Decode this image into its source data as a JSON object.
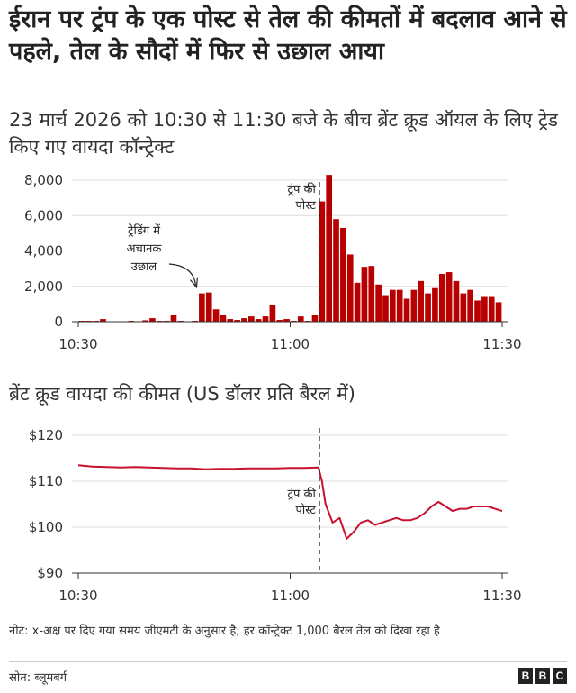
{
  "header": {
    "title": "ईरान पर ट्रंप के एक पोस्ट से तेल की कीमतों में बदलाव आने से पहले, तेल के सौदों में फिर से उछाल आया",
    "subtitle": "23 मार्च 2026 को 10:30 से 11:30 बजे के बीच ब्रेंट क्रूड ऑयल के लिए ट्रेड किए गए वायदा कॉन्ट्रेक्ट"
  },
  "chart2_heading": "ब्रेंट क्रूड वायदा की कीमत (US डॉलर प्रति बैरल में)",
  "colors": {
    "bar": "#b80000",
    "line": "#c8102e",
    "axis": "#999999",
    "grid": "#dddddd"
  },
  "chart_data": [
    {
      "type": "bar",
      "title": "23 मार्च 2026 को 10:30 से 11:30 बजे के बीच ब्रेंट क्रूड ऑयल के लिए ट्रेड किए गए वायदा कॉन्ट्रेक्ट",
      "x_unit": "minute (GMT)",
      "x_range": [
        "10:30",
        "11:30"
      ],
      "x_ticks": [
        "10:30",
        "11:00",
        "11:30"
      ],
      "y_ticks": [
        "0",
        "2,000",
        "4,000",
        "6,000",
        "8,000"
      ],
      "ylim": [
        0,
        8000
      ],
      "grid": true,
      "x": [
        "10:30",
        "10:31",
        "10:32",
        "10:33",
        "10:34",
        "10:35",
        "10:36",
        "10:37",
        "10:38",
        "10:39",
        "10:40",
        "10:41",
        "10:42",
        "10:43",
        "10:44",
        "10:45",
        "10:46",
        "10:47",
        "10:48",
        "10:49",
        "10:50",
        "10:51",
        "10:52",
        "10:53",
        "10:54",
        "10:55",
        "10:56",
        "10:57",
        "10:58",
        "10:59",
        "11:00",
        "11:01",
        "11:02",
        "11:03",
        "11:04",
        "11:05",
        "11:06",
        "11:07",
        "11:08",
        "11:09",
        "11:10",
        "11:11",
        "11:12",
        "11:13",
        "11:14",
        "11:15",
        "11:16",
        "11:17",
        "11:18",
        "11:19",
        "11:20",
        "11:21",
        "11:22",
        "11:23",
        "11:24",
        "11:25",
        "11:26",
        "11:27",
        "11:28",
        "11:29"
      ],
      "values": [
        50,
        50,
        50,
        150,
        20,
        20,
        20,
        50,
        20,
        80,
        200,
        50,
        50,
        400,
        50,
        20,
        50,
        1600,
        1650,
        700,
        400,
        150,
        100,
        200,
        300,
        150,
        300,
        950,
        100,
        150,
        50,
        300,
        50,
        400,
        6800,
        8300,
        5800,
        5300,
        3800,
        2200,
        3100,
        3150,
        2100,
        1500,
        1800,
        1800,
        1300,
        1800,
        2300,
        1600,
        1900,
        2700,
        2800,
        2300,
        1600,
        1800,
        1200,
        1400,
        1400,
        1100
      ],
      "annotations": [
        {
          "text_lines": [
            "ट्रेडिंग में",
            "अचानक",
            "उछाल"
          ],
          "x": "10:47",
          "y": 1650,
          "arrow": true
        },
        {
          "text_lines": [
            "ट्रंप की",
            "पोस्ट"
          ],
          "x": "11:04",
          "marker": "dashed-vertical"
        }
      ]
    },
    {
      "type": "line",
      "title": "ब्रेंट क्रूड वायदा की कीमत (US डॉलर प्रति बैरल में)",
      "x_ticks": [
        "10:30",
        "11:00",
        "11:30"
      ],
      "y_ticks": [
        "$90",
        "$100",
        "$110",
        "$120"
      ],
      "ylim": [
        90,
        120
      ],
      "grid": true,
      "x": [
        "10:30",
        "10:32",
        "10:34",
        "10:36",
        "10:38",
        "10:40",
        "10:42",
        "10:44",
        "10:46",
        "10:48",
        "10:50",
        "10:52",
        "10:54",
        "10:56",
        "10:58",
        "11:00",
        "11:02",
        "11:04",
        "11:04.5",
        "11:05",
        "11:06",
        "11:07",
        "11:08",
        "11:09",
        "11:10",
        "11:11",
        "11:12",
        "11:13",
        "11:14",
        "11:15",
        "11:16",
        "11:17",
        "11:18",
        "11:19",
        "11:20",
        "11:21",
        "11:22",
        "11:23",
        "11:24",
        "11:25",
        "11:26",
        "11:27",
        "11:28",
        "11:29",
        "11:30"
      ],
      "values": [
        113.5,
        113.2,
        113.1,
        113.0,
        113.1,
        113.0,
        112.9,
        112.8,
        112.8,
        112.6,
        112.7,
        112.7,
        112.8,
        112.8,
        112.8,
        112.9,
        112.9,
        113.0,
        110.0,
        105.0,
        101.0,
        102.0,
        97.5,
        99.0,
        101.0,
        101.5,
        100.5,
        101.0,
        101.5,
        102.0,
        101.5,
        101.5,
        102.0,
        103.0,
        104.5,
        105.5,
        104.5,
        103.5,
        104.0,
        104.0,
        104.5,
        104.5,
        104.5,
        104.0,
        103.5
      ],
      "annotations": [
        {
          "text_lines": [
            "ट्रंप की",
            "पोस्ट"
          ],
          "x": "11:04",
          "marker": "dashed-vertical"
        }
      ]
    }
  ],
  "footer": {
    "note": "नोट: x-अक्ष पर दिए गया समय जीएमटी के अनुसार है; हर कॉन्ट्रेक्ट 1,000 बैरल तेल को दिखा रहा है",
    "source": "स्रोत: ब्लूमबर्ग",
    "logo_letters": [
      "B",
      "B",
      "C"
    ]
  }
}
